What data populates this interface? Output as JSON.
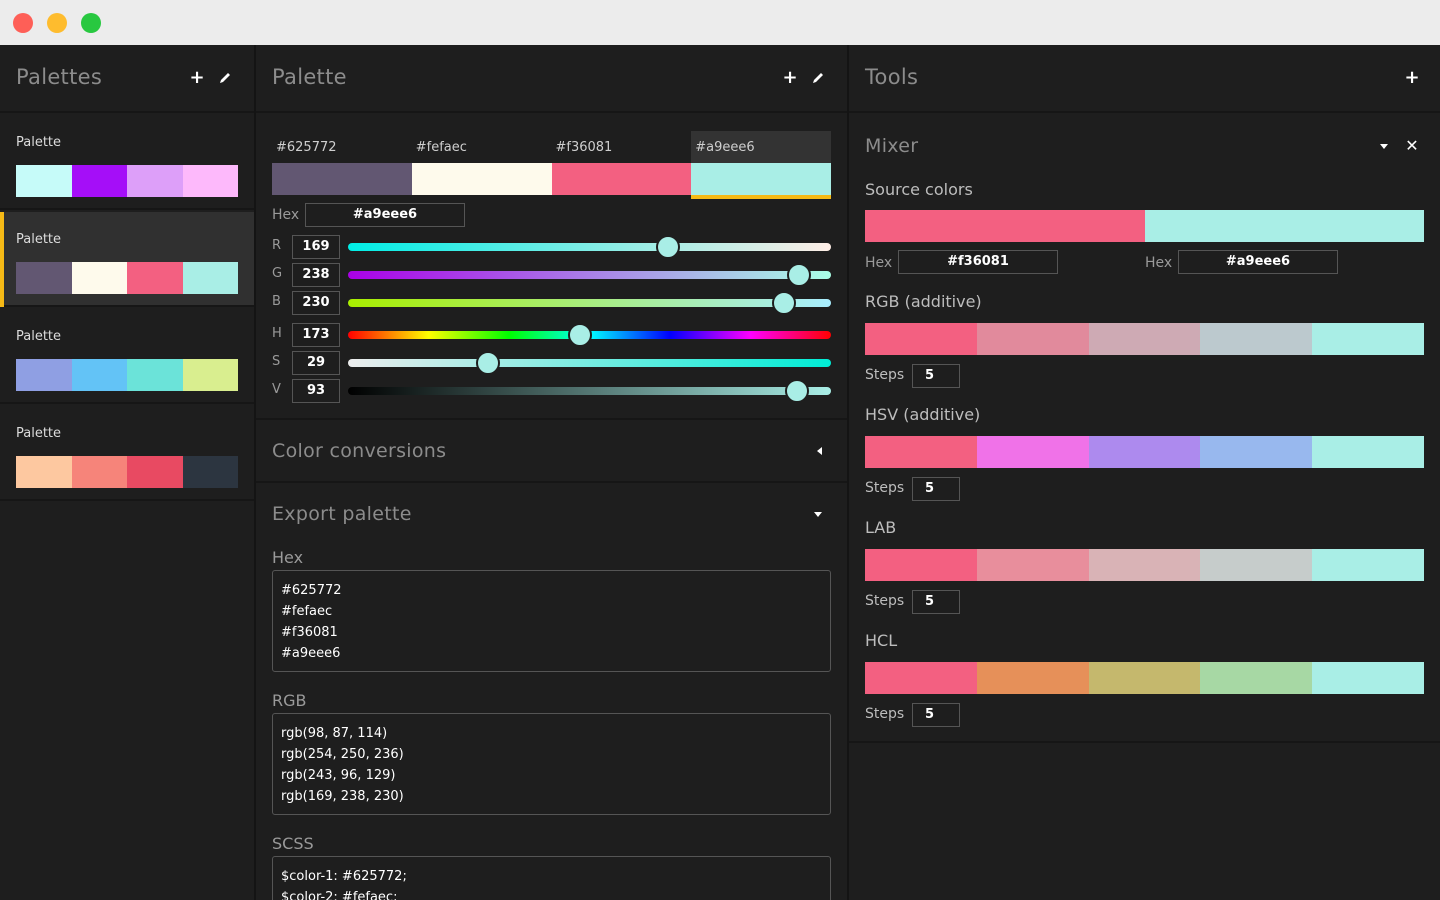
{
  "palettes_panel": {
    "title": "Palettes",
    "add_icon": "plus-icon",
    "edit_icon": "pencil-icon",
    "items": [
      {
        "name": "Palette",
        "colors": [
          "#c6fbf9",
          "#a50ef8",
          "#dd9ff9",
          "#fdb9fb"
        ],
        "active": false
      },
      {
        "name": "Palette",
        "colors": [
          "#625772",
          "#fefaec",
          "#f36081",
          "#a9eee6"
        ],
        "active": true
      },
      {
        "name": "Palette",
        "colors": [
          "#8f9fe3",
          "#63c3f6",
          "#6be3d9",
          "#d9ee8f"
        ],
        "active": false
      },
      {
        "name": "Palette",
        "colors": [
          "#fdc8a0",
          "#f6847a",
          "#e84a62",
          "#2c3540"
        ],
        "active": false
      }
    ]
  },
  "palette_panel": {
    "title": "Palette",
    "swatches": [
      {
        "hex": "#625772",
        "color": "#625772"
      },
      {
        "hex": "#fefaec",
        "color": "#fefaec"
      },
      {
        "hex": "#f36081",
        "color": "#f36081"
      },
      {
        "hex": "#a9eee6",
        "color": "#a9eee6",
        "selected": true
      }
    ],
    "hex_label": "Hex",
    "hex_value": "#a9eee6",
    "sliders": [
      {
        "label": "R",
        "value": "169",
        "level": 0.663
      },
      {
        "label": "G",
        "value": "238",
        "level": 0.933
      },
      {
        "label": "B",
        "value": "230",
        "level": 0.902
      },
      {
        "label": "H",
        "value": "173",
        "level": 0.481
      },
      {
        "label": "S",
        "value": "29",
        "level": 0.29
      },
      {
        "label": "V",
        "value": "93",
        "level": 0.93
      }
    ],
    "color_conversions_title": "Color conversions",
    "export_title": "Export palette",
    "export": {
      "hex_label": "Hex",
      "hex_text": "#625772\n#fefaec\n#f36081\n#a9eee6",
      "rgb_label": "RGB",
      "rgb_text": "rgb(98, 87, 114)\nrgb(254, 250, 236)\nrgb(243, 96, 129)\nrgb(169, 238, 230)",
      "scss_label": "SCSS",
      "scss_text": "$color-1: #625772;\n$color-2: #fefaec;"
    }
  },
  "tools_panel": {
    "title": "Tools",
    "mixer": {
      "title": "Mixer",
      "source_colors_label": "Source colors",
      "source": [
        {
          "hex_label": "Hex",
          "hex": "#f36081",
          "color": "#f36081"
        },
        {
          "hex_label": "Hex",
          "hex": "#a9eee6",
          "color": "#a9eee6"
        }
      ],
      "modes": [
        {
          "title": "RGB (additive)",
          "steps_label": "Steps",
          "steps": "5",
          "colors": [
            "#f36081",
            "#e18a9c",
            "#ceaab4",
            "#bcc9ce",
            "#a9eee6"
          ]
        },
        {
          "title": "HSV (additive)",
          "steps_label": "Steps",
          "steps": "5",
          "colors": [
            "#f36081",
            "#f072e8",
            "#ad8aee",
            "#98b8ee",
            "#a9eee6"
          ]
        },
        {
          "title": "LAB",
          "steps_label": "Steps",
          "steps": "5",
          "colors": [
            "#f36081",
            "#e88e9c",
            "#d9b3b6",
            "#c6cccb",
            "#a9eee6"
          ]
        },
        {
          "title": "HCL",
          "steps_label": "Steps",
          "steps": "5",
          "colors": [
            "#f36081",
            "#e69059",
            "#c5b86d",
            "#a7d8a4",
            "#a9eee6"
          ]
        }
      ]
    }
  }
}
